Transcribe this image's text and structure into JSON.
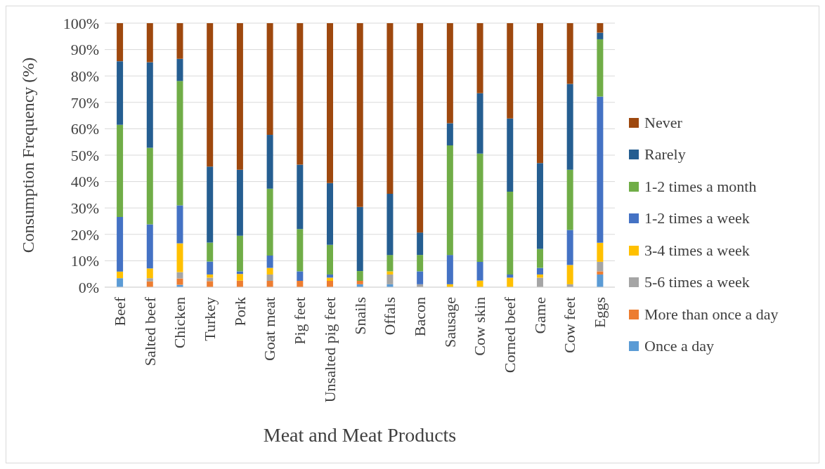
{
  "chart_data": {
    "type": "bar",
    "stacked": true,
    "xlabel": "Meat and Meat Products",
    "ylabel": "Consumption Frequency (%)",
    "categories": [
      "Beef",
      "Salted beef",
      "Chicken",
      "Turkey",
      "Pork",
      "Goat meat",
      "Pig feet",
      "Unsalted pig feet",
      "Snails",
      "Offals",
      "Bacon",
      "Sausage",
      "Cow skin",
      "Corned beef",
      "Game",
      "Cow feet",
      "Eggs"
    ],
    "ylim": [
      0,
      100
    ],
    "yticks": [
      {
        "value": 0,
        "label": "0%"
      },
      {
        "value": 10,
        "label": "10%"
      },
      {
        "value": 20,
        "label": "20%"
      },
      {
        "value": 30,
        "label": "30%"
      },
      {
        "value": 40,
        "label": "40%"
      },
      {
        "value": 50,
        "label": "50%"
      },
      {
        "value": 60,
        "label": "60%"
      },
      {
        "value": 70,
        "label": "70%"
      },
      {
        "value": 80,
        "label": "80%"
      },
      {
        "value": 90,
        "label": "90%"
      },
      {
        "value": 100,
        "label": "100%"
      }
    ],
    "grid": "y",
    "legend": "right",
    "series": [
      {
        "name": "Once a day",
        "color": "#5b9bd5",
        "values": [
          3.4,
          0,
          0.9,
          0,
          0,
          0,
          0,
          0,
          1.1,
          1.1,
          0,
          0,
          0,
          0,
          0,
          0,
          4.8
        ]
      },
      {
        "name": "More than once a day",
        "color": "#ed7d31",
        "values": [
          0,
          2.2,
          2.4,
          2.3,
          2.5,
          2.4,
          2.4,
          2.4,
          1.3,
          0,
          0,
          0,
          0,
          0,
          0,
          0,
          1.2
        ]
      },
      {
        "name": "5-6 times a week",
        "color": "#a5a5a5",
        "values": [
          0,
          1.2,
          2.4,
          1.3,
          0,
          2.4,
          0,
          0,
          0,
          3.7,
          1.1,
          0,
          0,
          0,
          3.6,
          1.1,
          3.6
        ]
      },
      {
        "name": "3-4 times a week",
        "color": "#ffc000",
        "values": [
          2.5,
          3.7,
          10.9,
          1.2,
          2.5,
          2.5,
          0,
          1.2,
          0,
          1.2,
          0,
          1.1,
          2.5,
          3.6,
          1.2,
          7.3,
          7.2
        ]
      },
      {
        "name": "1-2 times a week",
        "color": "#4472c4",
        "values": [
          20.7,
          16.7,
          14.4,
          4.9,
          1,
          4.7,
          3.6,
          1.2,
          0,
          0,
          4.9,
          11.1,
          7.1,
          1.2,
          2.5,
          13.3,
          55.4
        ]
      },
      {
        "name": "1-2 times a month",
        "color": "#70ad47",
        "values": [
          34.9,
          29.0,
          47.1,
          7.2,
          13.5,
          25.3,
          16.0,
          11.2,
          3.7,
          6.2,
          6.2,
          41.5,
          41.0,
          31.4,
          7.2,
          22.8,
          21.7
        ]
      },
      {
        "name": "Rarely",
        "color": "#255e91",
        "values": [
          24.1,
          32.4,
          8.4,
          28.8,
          25,
          20.4,
          24.4,
          23.4,
          24.3,
          23.2,
          8.5,
          8.4,
          22.9,
          27.7,
          32.5,
          32.5,
          2.5
        ]
      },
      {
        "name": "Never",
        "color": "#9e480e",
        "values": [
          14.4,
          14.8,
          13.5,
          54.3,
          55.5,
          42.3,
          53.6,
          60.6,
          69.6,
          64.6,
          79.3,
          37.9,
          26.5,
          36.1,
          53.0,
          23.0,
          3.6
        ]
      }
    ]
  }
}
